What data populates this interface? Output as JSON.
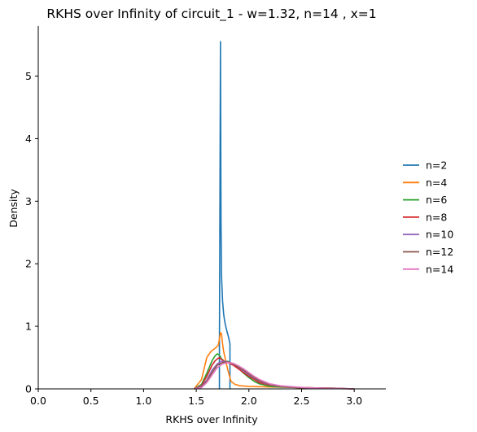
{
  "chart_data": {
    "type": "line",
    "title": "RKHS over Infinity of circuit_1 - w=1.32, n=14 , x=1",
    "xlabel": "RKHS over Infinity",
    "ylabel": "Density",
    "xlim": [
      0.0,
      3.3
    ],
    "ylim": [
      0.0,
      5.8
    ],
    "xticks": [
      0.0,
      0.5,
      1.0,
      1.5,
      2.0,
      2.5,
      3.0
    ],
    "xtick_labels": [
      "0.0",
      "0.5",
      "1.0",
      "1.5",
      "2.0",
      "2.5",
      "3.0"
    ],
    "yticks": [
      0,
      1,
      2,
      3,
      4,
      5
    ],
    "ytick_labels": [
      "0",
      "1",
      "2",
      "3",
      "4",
      "5"
    ],
    "grid": false,
    "legend_position": "right",
    "series": [
      {
        "name": "n=2",
        "color": "#1f77b4",
        "x": [
          1.72,
          1.72,
          1.73,
          1.735,
          1.74,
          1.75,
          1.76,
          1.77,
          1.78,
          1.79,
          1.8,
          1.81,
          1.815,
          1.82,
          1.82
        ],
        "y": [
          0.0,
          0.6,
          5.55,
          2.7,
          1.8,
          1.4,
          1.2,
          1.08,
          1.0,
          0.93,
          0.87,
          0.8,
          0.76,
          0.72,
          0.0
        ]
      },
      {
        "name": "n=4",
        "color": "#ff7f0e",
        "x": [
          1.48,
          1.55,
          1.6,
          1.64,
          1.68,
          1.7,
          1.71,
          1.72,
          1.73,
          1.74,
          1.75,
          1.76,
          1.78,
          1.8,
          1.83,
          1.87,
          1.92,
          2.0,
          2.2,
          2.5,
          2.8,
          3.0
        ],
        "y": [
          0.0,
          0.15,
          0.5,
          0.6,
          0.65,
          0.68,
          0.7,
          0.8,
          0.9,
          0.88,
          0.72,
          0.6,
          0.45,
          0.3,
          0.12,
          0.07,
          0.05,
          0.04,
          0.03,
          0.02,
          0.01,
          0.0
        ]
      },
      {
        "name": "n=6",
        "color": "#2ca02c",
        "x": [
          1.48,
          1.55,
          1.6,
          1.65,
          1.68,
          1.7,
          1.72,
          1.74,
          1.77,
          1.8,
          1.85,
          1.9,
          1.95,
          2.0,
          2.05,
          2.1,
          2.2,
          2.3,
          2.5,
          2.8,
          3.0
        ],
        "y": [
          0.0,
          0.07,
          0.25,
          0.45,
          0.53,
          0.56,
          0.54,
          0.48,
          0.44,
          0.44,
          0.4,
          0.33,
          0.25,
          0.18,
          0.12,
          0.08,
          0.04,
          0.03,
          0.02,
          0.01,
          0.0
        ]
      },
      {
        "name": "n=8",
        "color": "#d62728",
        "x": [
          1.48,
          1.55,
          1.6,
          1.65,
          1.68,
          1.7,
          1.72,
          1.74,
          1.77,
          1.8,
          1.85,
          1.9,
          1.95,
          2.0,
          2.05,
          2.1,
          2.2,
          2.3,
          2.5,
          2.8,
          3.0
        ],
        "y": [
          0.0,
          0.05,
          0.2,
          0.38,
          0.45,
          0.48,
          0.5,
          0.47,
          0.44,
          0.42,
          0.38,
          0.32,
          0.26,
          0.2,
          0.15,
          0.1,
          0.06,
          0.04,
          0.02,
          0.01,
          0.0
        ]
      },
      {
        "name": "n=10",
        "color": "#9467bd",
        "x": [
          1.48,
          1.55,
          1.6,
          1.65,
          1.7,
          1.74,
          1.78,
          1.82,
          1.87,
          1.92,
          1.97,
          2.02,
          2.08,
          2.15,
          2.25,
          2.35,
          2.5,
          2.7,
          2.9,
          3.0
        ],
        "y": [
          0.0,
          0.04,
          0.14,
          0.3,
          0.4,
          0.44,
          0.44,
          0.42,
          0.38,
          0.32,
          0.26,
          0.2,
          0.14,
          0.09,
          0.05,
          0.03,
          0.02,
          0.01,
          0.005,
          0.0
        ]
      },
      {
        "name": "n=12",
        "color": "#8c564b",
        "x": [
          1.48,
          1.55,
          1.6,
          1.65,
          1.7,
          1.75,
          1.8,
          1.85,
          1.9,
          1.95,
          2.0,
          2.05,
          2.1,
          2.2,
          2.3,
          2.45,
          2.6,
          2.8,
          3.0
        ],
        "y": [
          0.0,
          0.03,
          0.12,
          0.26,
          0.38,
          0.42,
          0.43,
          0.4,
          0.35,
          0.3,
          0.24,
          0.18,
          0.13,
          0.07,
          0.04,
          0.02,
          0.01,
          0.005,
          0.0
        ]
      },
      {
        "name": "n=14",
        "color": "#e377c2",
        "x": [
          1.48,
          1.55,
          1.6,
          1.65,
          1.7,
          1.75,
          1.8,
          1.85,
          1.9,
          1.95,
          2.0,
          2.05,
          2.1,
          2.2,
          2.3,
          2.45,
          2.6,
          2.8,
          3.0
        ],
        "y": [
          0.0,
          0.02,
          0.1,
          0.22,
          0.34,
          0.4,
          0.42,
          0.41,
          0.37,
          0.32,
          0.26,
          0.2,
          0.15,
          0.08,
          0.05,
          0.03,
          0.015,
          0.005,
          0.0
        ]
      }
    ]
  }
}
